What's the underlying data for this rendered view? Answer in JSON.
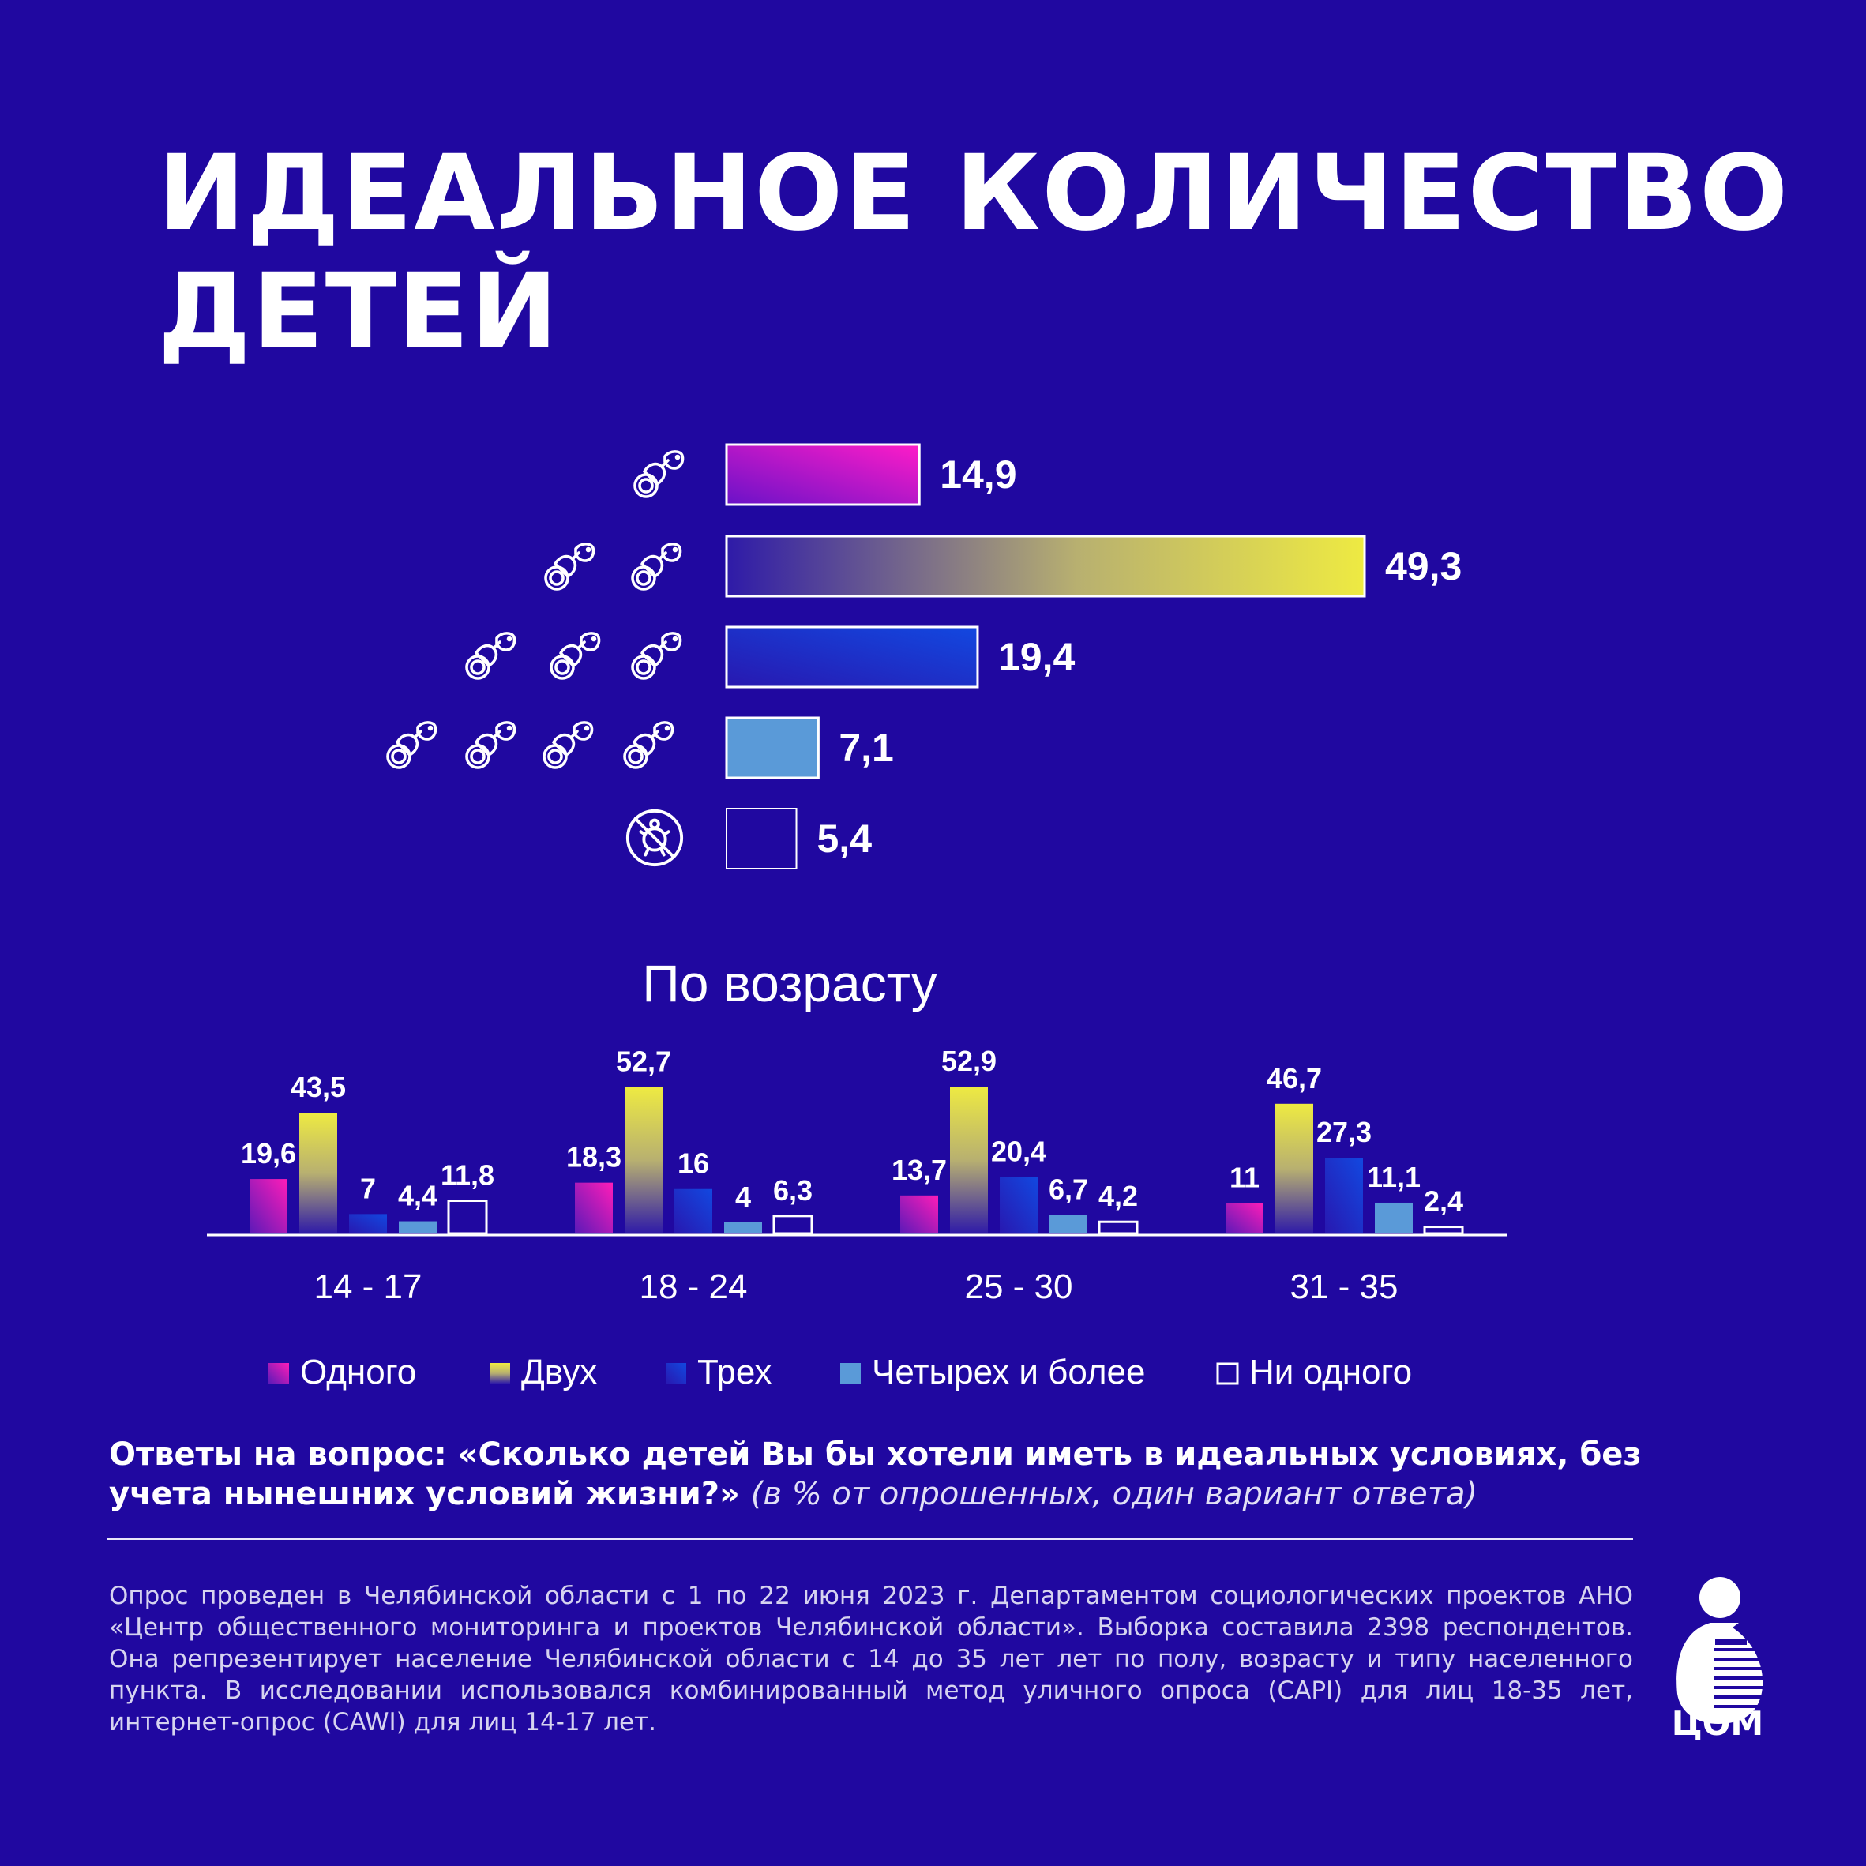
{
  "header": {
    "title_line1": "ИДЕАЛЬНОЕ КОЛИЧЕСТВО",
    "title_line2": "ДЕТЕЙ"
  },
  "colors": {
    "background": "#2008a0",
    "one": "#ff1cc8",
    "two": "#e8e448",
    "three": "#1244e0",
    "four_plus": "#5a9ad8",
    "none": "#2008a0"
  },
  "chart_data": [
    {
      "type": "bar",
      "orientation": "horizontal",
      "title": "",
      "categories": [
        "1 ребенок",
        "2 ребенка",
        "3 ребенка",
        "4 ребенка и более",
        "Ни одного"
      ],
      "icons": [
        "pacifier-icon x1",
        "pacifier-icon x2",
        "pacifier-icon x3",
        "pacifier-icon x4",
        "no-child-icon"
      ],
      "values": [
        14.9,
        49.3,
        19.4,
        7.1,
        5.4
      ],
      "labels": [
        "14,9",
        "49,3",
        "19,4",
        "7,1",
        "5,4"
      ],
      "xlim": [
        0,
        49.3
      ],
      "grid": false
    },
    {
      "type": "bar",
      "orientation": "vertical",
      "title": "По возрасту",
      "categories": [
        "14 - 17",
        "18 - 24",
        "25 - 30",
        "31 - 35"
      ],
      "series": [
        {
          "name": "Одного",
          "values": [
            19.6,
            18.3,
            13.7,
            11
          ],
          "labels": [
            "19,6",
            "18,3",
            "13,7",
            "11"
          ]
        },
        {
          "name": "Двух",
          "values": [
            43.5,
            52.7,
            52.9,
            46.7
          ],
          "labels": [
            "43,5",
            "52,7",
            "52,9",
            "46,7"
          ]
        },
        {
          "name": "Трех",
          "values": [
            7,
            16,
            20.4,
            27.3
          ],
          "labels": [
            "7",
            "16",
            "20,4",
            "27,3"
          ]
        },
        {
          "name": "Четырех и более",
          "values": [
            4.4,
            4,
            6.7,
            11.1
          ],
          "labels": [
            "4,4",
            "4",
            "6,7",
            "11,1"
          ]
        },
        {
          "name": "Ни одного",
          "values": [
            11.8,
            6.3,
            4.2,
            2.4
          ],
          "labels": [
            "11,8",
            "6,3",
            "4,2",
            "2,4"
          ]
        }
      ],
      "ylim": [
        0,
        52.9
      ],
      "legend": "bottom",
      "grid": false
    }
  ],
  "question": {
    "main": "Ответы на вопрос: «Сколько детей Вы бы хотели иметь в идеальных условиях, без учета нынешних условий жизни?»",
    "note": "(в % от опрошенных, один вариант ответа)"
  },
  "methodology": "Опрос проведен в Челябинской области с 1 по 22 июня 2023 г. Департаментом социологических проектов АНО «Центр общественного мониторинга и проектов Челябинской области». Выборка составила 2398 респондентов. Она репрезентирует население Челябинской области с 14 до 35 лет лет по полу, возрасту и типу населенного пункта. В исследовании использовался комбинированный метод уличного опроса (CAPI) для лиц 18-35 лет, интернет-опрос (CAWI) для лиц 14-17 лет.",
  "logo": {
    "text": "ЦОМ"
  }
}
